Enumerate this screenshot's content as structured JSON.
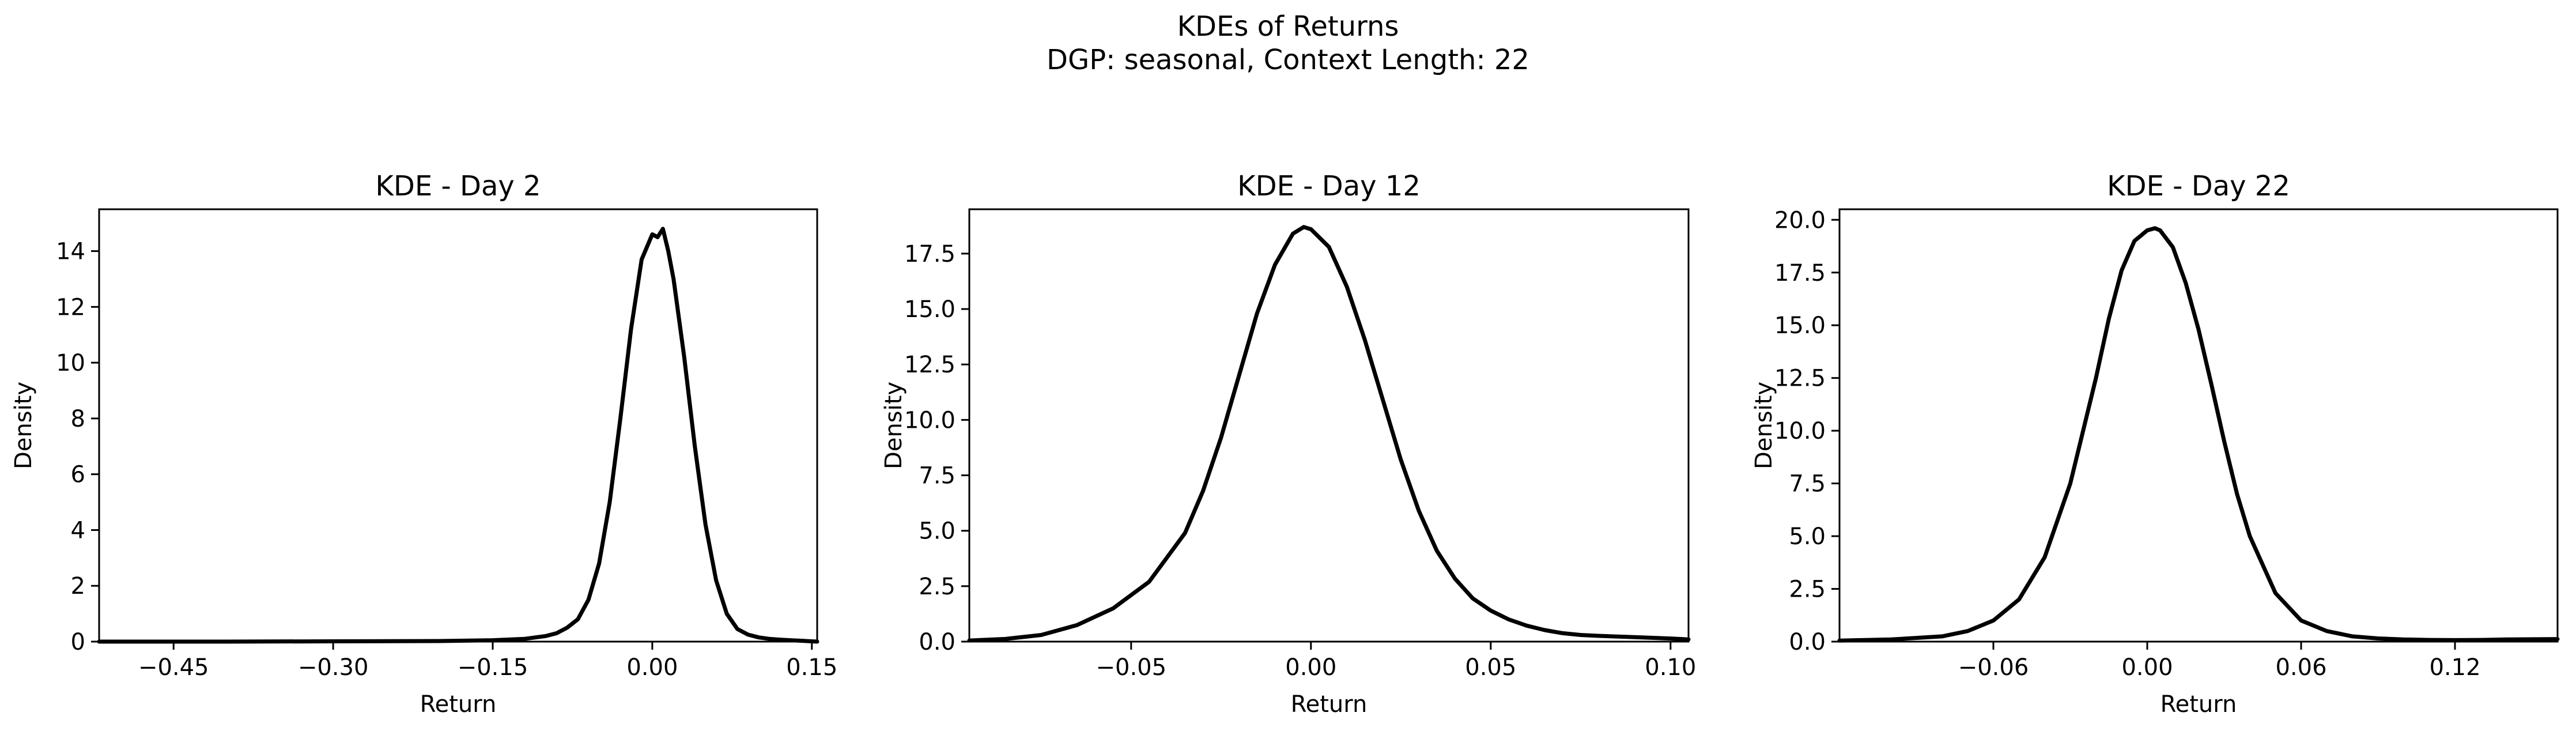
{
  "suptitle": {
    "line1": "KDEs of Returns",
    "line2": "DGP: seasonal, Context Length: 22"
  },
  "colors": {
    "line": "#000000",
    "background": "#ffffff",
    "axes": "#000000"
  },
  "chart_data": [
    {
      "type": "line",
      "title": "KDE - Day 2",
      "xlabel": "Return",
      "ylabel": "Density",
      "xlim": [
        -0.52,
        0.155
      ],
      "ylim": [
        0,
        15.5
      ],
      "xticks": [
        -0.45,
        -0.3,
        -0.15,
        0.0,
        0.15
      ],
      "xtick_labels": [
        "−0.45",
        "−0.30",
        "−0.15",
        "0.00",
        "0.15"
      ],
      "yticks": [
        0,
        2,
        4,
        6,
        8,
        10,
        12,
        14
      ],
      "ytick_labels": [
        "0",
        "2",
        "4",
        "6",
        "8",
        "10",
        "12",
        "14"
      ],
      "grid": false,
      "series": [
        {
          "x": [
            -0.52,
            -0.4,
            -0.3,
            -0.2,
            -0.15,
            -0.12,
            -0.1,
            -0.09,
            -0.08,
            -0.07,
            -0.06,
            -0.05,
            -0.04,
            -0.03,
            -0.02,
            -0.01,
            0.0,
            0.005,
            0.01,
            0.015,
            0.02,
            0.03,
            0.04,
            0.05,
            0.06,
            0.07,
            0.08,
            0.09,
            0.1,
            0.11,
            0.12,
            0.13,
            0.14,
            0.155
          ],
          "y": [
            0.0,
            0.0,
            0.01,
            0.02,
            0.05,
            0.1,
            0.2,
            0.3,
            0.5,
            0.8,
            1.5,
            2.8,
            5.0,
            8.0,
            11.2,
            13.7,
            14.6,
            14.5,
            14.8,
            14.0,
            13.0,
            10.2,
            7.0,
            4.2,
            2.2,
            1.0,
            0.45,
            0.25,
            0.15,
            0.1,
            0.07,
            0.05,
            0.03,
            0.0
          ]
        }
      ]
    },
    {
      "type": "line",
      "title": "KDE - Day 12",
      "xlabel": "Return",
      "ylabel": "Density",
      "xlim": [
        -0.095,
        0.105
      ],
      "ylim": [
        0,
        19.5
      ],
      "xticks": [
        -0.05,
        0.0,
        0.05,
        0.1
      ],
      "xtick_labels": [
        "−0.05",
        "0.00",
        "0.05",
        "0.10"
      ],
      "yticks": [
        0,
        2.5,
        5,
        7.5,
        10,
        12.5,
        15,
        17.5
      ],
      "ytick_labels": [
        "0.0",
        "2.5",
        "5.0",
        "7.5",
        "10.0",
        "12.5",
        "15.0",
        "17.5"
      ],
      "grid": false,
      "series": [
        {
          "x": [
            -0.095,
            -0.085,
            -0.075,
            -0.065,
            -0.055,
            -0.045,
            -0.035,
            -0.03,
            -0.025,
            -0.02,
            -0.015,
            -0.01,
            -0.005,
            -0.002,
            0.0,
            0.005,
            0.01,
            0.015,
            0.02,
            0.025,
            0.03,
            0.035,
            0.04,
            0.045,
            0.05,
            0.055,
            0.06,
            0.065,
            0.07,
            0.075,
            0.08,
            0.09,
            0.1,
            0.105
          ],
          "y": [
            0.05,
            0.12,
            0.3,
            0.75,
            1.5,
            2.7,
            4.9,
            6.8,
            9.2,
            12.0,
            14.8,
            17.0,
            18.4,
            18.7,
            18.6,
            17.8,
            16.0,
            13.6,
            10.9,
            8.2,
            5.9,
            4.1,
            2.85,
            1.95,
            1.4,
            1.0,
            0.72,
            0.52,
            0.38,
            0.3,
            0.26,
            0.2,
            0.14,
            0.1
          ]
        }
      ]
    },
    {
      "type": "line",
      "title": "KDE - Day 22",
      "xlabel": "Return",
      "ylabel": "Density",
      "xlim": [
        -0.12,
        0.16
      ],
      "ylim": [
        0,
        20.5
      ],
      "xticks": [
        -0.06,
        0.0,
        0.06,
        0.12
      ],
      "xtick_labels": [
        "−0.06",
        "0.00",
        "0.06",
        "0.12"
      ],
      "yticks": [
        0,
        2.5,
        5,
        7.5,
        10,
        12.5,
        15,
        17.5,
        20
      ],
      "ytick_labels": [
        "0.0",
        "2.5",
        "5.0",
        "7.5",
        "10.0",
        "12.5",
        "15.0",
        "17.5",
        "20.0"
      ],
      "grid": false,
      "series": [
        {
          "x": [
            -0.12,
            -0.1,
            -0.08,
            -0.07,
            -0.06,
            -0.05,
            -0.04,
            -0.03,
            -0.02,
            -0.015,
            -0.01,
            -0.005,
            0.0,
            0.003,
            0.005,
            0.01,
            0.015,
            0.02,
            0.025,
            0.03,
            0.035,
            0.04,
            0.05,
            0.06,
            0.07,
            0.08,
            0.09,
            0.1,
            0.11,
            0.12,
            0.13,
            0.14,
            0.16
          ],
          "y": [
            0.05,
            0.1,
            0.25,
            0.5,
            1.0,
            2.0,
            4.0,
            7.5,
            12.5,
            15.3,
            17.6,
            19.0,
            19.5,
            19.6,
            19.5,
            18.7,
            17.0,
            14.8,
            12.2,
            9.5,
            7.0,
            5.0,
            2.3,
            1.0,
            0.5,
            0.25,
            0.15,
            0.1,
            0.08,
            0.07,
            0.08,
            0.1,
            0.12
          ]
        }
      ]
    }
  ]
}
